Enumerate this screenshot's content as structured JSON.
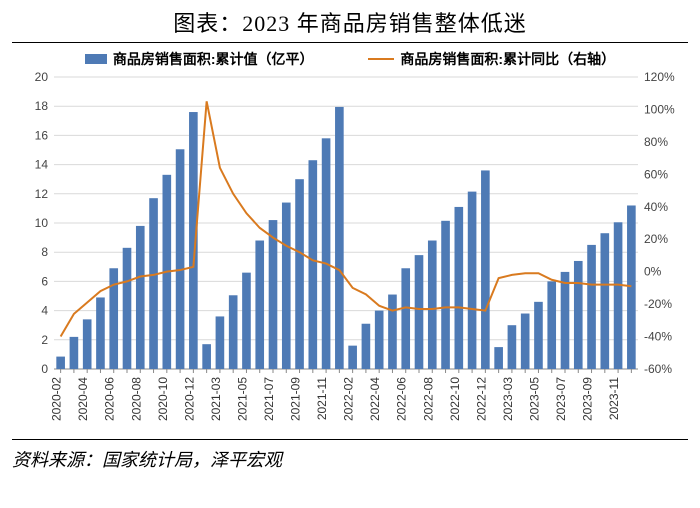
{
  "title": "图表：2023 年商品房销售整体低迷",
  "source_label": "资料来源：国家统计局，泽平宏观",
  "legend": {
    "bar": "商品房销售面积:累计值（亿平）",
    "line": "商品房销售面积:累计同比（右轴）"
  },
  "chart": {
    "type": "bar+line",
    "bar_color": "#4e7ab5",
    "line_color": "#d97a1f",
    "background": "#ffffff",
    "grid_color": "#d9d9d9",
    "axis_color": "#888888",
    "left_axis": {
      "min": 0,
      "max": 20,
      "step": 2,
      "fontsize": 12
    },
    "right_axis": {
      "min": -60,
      "max": 120,
      "step": 20,
      "suffix": "%",
      "fontsize": 12
    },
    "x_labels_shown": [
      "2020-02",
      "2020-04",
      "2020-06",
      "2020-08",
      "2020-10",
      "2020-12",
      "2021-03",
      "2021-05",
      "2021-07",
      "2021-09",
      "2021-11",
      "2022-02",
      "2022-04",
      "2022-06",
      "2022-08",
      "2022-10",
      "2022-12",
      "2023-03",
      "2023-05",
      "2023-07",
      "2023-09",
      "2023-11"
    ],
    "x_label_fontsize": 12,
    "x_label_rotation": -90,
    "categories": [
      "2020-02",
      "2020-03",
      "2020-04",
      "2020-05",
      "2020-06",
      "2020-07",
      "2020-08",
      "2020-09",
      "2020-10",
      "2020-11",
      "2020-12",
      "2021-02",
      "2021-03",
      "2021-04",
      "2021-05",
      "2021-06",
      "2021-07",
      "2021-08",
      "2021-09",
      "2021-10",
      "2021-11",
      "2021-12",
      "2022-02",
      "2022-03",
      "2022-04",
      "2022-05",
      "2022-06",
      "2022-07",
      "2022-08",
      "2022-09",
      "2022-10",
      "2022-11",
      "2022-12",
      "2023-02",
      "2023-03",
      "2023-04",
      "2023-05",
      "2023-06",
      "2023-07",
      "2023-08",
      "2023-09",
      "2023-10",
      "2023-11",
      "2023-12"
    ],
    "bar_values": [
      0.85,
      2.2,
      3.4,
      4.9,
      6.9,
      8.3,
      9.8,
      11.7,
      13.3,
      15.05,
      17.6,
      1.7,
      3.6,
      5.05,
      6.6,
      8.8,
      10.2,
      11.4,
      13.0,
      14.3,
      15.8,
      17.95,
      1.6,
      3.1,
      4.0,
      5.1,
      6.9,
      7.8,
      8.8,
      10.15,
      11.1,
      12.15,
      13.6,
      1.5,
      3.0,
      3.8,
      4.6,
      6.0,
      6.65,
      7.4,
      8.5,
      9.3,
      10.05,
      11.2
    ],
    "line_values": [
      -40,
      -26,
      -19,
      -12,
      -8,
      -6,
      -3,
      -2,
      0,
      1,
      3,
      105,
      64,
      48,
      36,
      27,
      21,
      16,
      12,
      7,
      5,
      1,
      -10,
      -14,
      -21,
      -24,
      -22,
      -23,
      -23,
      -22,
      -22,
      -23,
      -24,
      -4,
      -2,
      -1,
      -1,
      -5,
      -7,
      -7,
      -8,
      -8,
      -8,
      -9
    ],
    "bar_width_ratio": 0.65,
    "line_width": 2
  }
}
